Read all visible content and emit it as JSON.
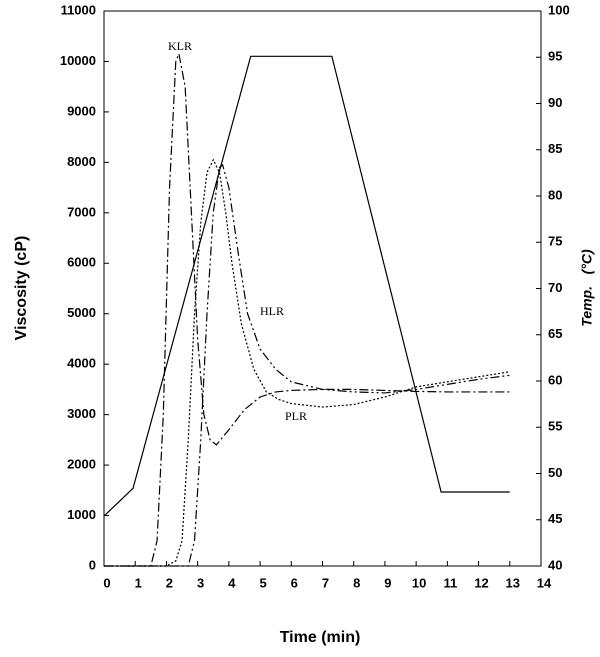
{
  "chart_data": {
    "type": "line",
    "x_label": "Time (min)",
    "y_label": "Viscosity (cP)",
    "y2_label": "Temp.   (°C)",
    "xlim": [
      0,
      14
    ],
    "xticks": [
      0,
      1,
      2,
      3,
      4,
      5,
      6,
      7,
      8,
      9,
      10,
      11,
      12,
      13,
      14
    ],
    "ylim": [
      0,
      11000
    ],
    "yticks": [
      0,
      1000,
      2000,
      3000,
      4000,
      5000,
      6000,
      7000,
      8000,
      9000,
      10000,
      11000
    ],
    "y2lim": [
      40,
      100
    ],
    "y2ticks": [
      40,
      45,
      50,
      55,
      60,
      65,
      70,
      75,
      80,
      85,
      90,
      95,
      100
    ],
    "series": [
      {
        "name": "KLR",
        "color": "#000000",
        "dash": "dash-dot",
        "x": [
          0,
          1.5,
          1.7,
          1.9,
          2.1,
          2.3,
          2.4,
          2.6,
          2.8,
          3.0,
          3.2,
          3.4,
          3.6,
          4.0,
          4.5,
          5,
          5.5,
          6,
          7,
          8,
          9,
          10,
          11,
          12,
          13
        ],
        "values": [
          0,
          0,
          500,
          3000,
          7500,
          10000,
          10150,
          9500,
          7000,
          4500,
          3000,
          2500,
          2400,
          2700,
          3100,
          3350,
          3450,
          3480,
          3500,
          3500,
          3480,
          3460,
          3450,
          3450,
          3450
        ]
      },
      {
        "name": "PLR",
        "color": "#000000",
        "dash": "dotted",
        "x": [
          0,
          2,
          2.3,
          2.5,
          2.7,
          2.9,
          3.1,
          3.3,
          3.5,
          3.7,
          3.9,
          4.1,
          4.4,
          4.8,
          5.2,
          5.6,
          6,
          7,
          8,
          9,
          10,
          11,
          12,
          13
        ],
        "values": [
          0,
          0,
          100,
          500,
          2500,
          5000,
          6800,
          7800,
          8050,
          7800,
          7000,
          6000,
          4800,
          3900,
          3450,
          3300,
          3220,
          3150,
          3200,
          3350,
          3550,
          3650,
          3750,
          3850
        ]
      },
      {
        "name": "HLR",
        "color": "#000000",
        "dash": "dash-dot-dot",
        "x": [
          0,
          2.7,
          2.9,
          3.1,
          3.3,
          3.5,
          3.7,
          3.8,
          4.0,
          4.3,
          4.6,
          5.0,
          5.5,
          6,
          7,
          8,
          9,
          10,
          11,
          12,
          13
        ],
        "values": [
          0,
          0,
          500,
          2500,
          5000,
          7000,
          7900,
          7950,
          7500,
          6200,
          5000,
          4300,
          3900,
          3650,
          3500,
          3450,
          3430,
          3500,
          3600,
          3700,
          3780
        ]
      },
      {
        "color": "#000000",
        "dash": "solid",
        "axis": "y2",
        "x": [
          0,
          0.93,
          4.7,
          7.3,
          10.8,
          13
        ],
        "values": [
          45.4,
          48.4,
          95.1,
          95.1,
          48,
          48
        ]
      }
    ]
  }
}
